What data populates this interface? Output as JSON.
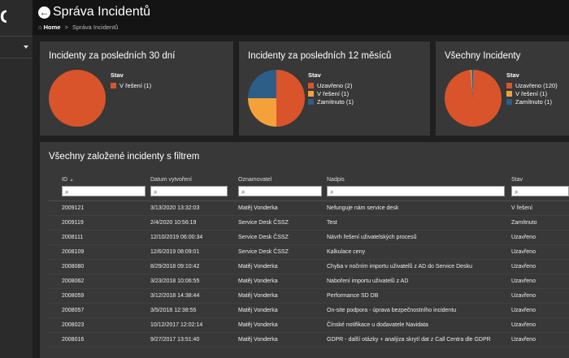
{
  "header": {
    "back_label": "←",
    "title": "Správa Incidentů",
    "breadcrumb": {
      "home": "Home",
      "separator": ">",
      "current": "Správa Incidentů"
    }
  },
  "sidebar": {
    "logo": "G"
  },
  "colors": {
    "uzavreno": "#d9542b",
    "v_reseni": "#f5a13a",
    "zamitnuto": "#2c5e88",
    "card_bg": "#383838",
    "page_bg": "#1f1f1f"
  },
  "cards": [
    {
      "title": "Incidenty za posledních 30 dní",
      "legend_title": "Stav",
      "items": [
        {
          "label": "V řešení (1)",
          "value": 1,
          "color": "#d9542b"
        }
      ]
    },
    {
      "title": "Incidenty za posledních 12 měsíců",
      "legend_title": "Stav",
      "items": [
        {
          "label": "Uzavřeno (2)",
          "value": 2,
          "color": "#d9542b"
        },
        {
          "label": "V řešení (1)",
          "value": 1,
          "color": "#f5a13a"
        },
        {
          "label": "Zamítnuto (1)",
          "value": 1,
          "color": "#2c5e88"
        }
      ]
    },
    {
      "title": "Všechny Incidenty",
      "legend_title": "Stav",
      "items": [
        {
          "label": "Uzavřeno (120)",
          "value": 120,
          "color": "#d9542b"
        },
        {
          "label": "V řešení (1)",
          "value": 1,
          "color": "#f5a13a"
        },
        {
          "label": "Zamítnuto (1)",
          "value": 1,
          "color": "#2c5e88"
        }
      ]
    }
  ],
  "chart_data": [
    {
      "type": "pie",
      "title": "Incidenty za posledních 30 dní",
      "legend_title": "Stav",
      "categories": [
        "V řešení"
      ],
      "values": [
        1
      ]
    },
    {
      "type": "pie",
      "title": "Incidenty za posledních 12 měsíců",
      "legend_title": "Stav",
      "categories": [
        "Uzavřeno",
        "V řešení",
        "Zamítnuto"
      ],
      "values": [
        2,
        1,
        1
      ]
    },
    {
      "type": "pie",
      "title": "Všechny Incidenty",
      "legend_title": "Stav",
      "categories": [
        "Uzavřeno",
        "V řešení",
        "Zamítnuto"
      ],
      "values": [
        120,
        1,
        1
      ]
    }
  ],
  "table": {
    "title": "Všechny založené incidenty s filtrem",
    "columns": [
      "ID",
      "Datum vytvoření",
      "Oznamovatel",
      "Nadpis",
      "Stav"
    ],
    "sort_icon": "sort-indicator-icon",
    "filter_icon": "search-icon",
    "rows": [
      [
        "2009121",
        "3/13/2020 13:32:03",
        "Matěj Vonderka",
        "Nefunguje nám service desk",
        "V řešení"
      ],
      [
        "2009119",
        "2/4/2020 10:56:19",
        "Service Desk ČSSZ",
        "Test",
        "Zamítnuto"
      ],
      [
        "2008111",
        "12/10/2019 06:00:34",
        "Service Desk ČSSZ",
        "Návrh řešení uživatelských procesů",
        "Uzavřeno"
      ],
      [
        "2008109",
        "12/6/2019 08:09:01",
        "Service Desk ČSSZ",
        "Kalkulace ceny",
        "Uzavřeno"
      ],
      [
        "2008080",
        "8/29/2018 09:10:42",
        "Matěj Vonderka",
        "Chyba v nočním importu uživatelů z AD do Service Desku",
        "Uzavřeno"
      ],
      [
        "2008062",
        "3/23/2018 10:06:55",
        "Matěj Vonderka",
        "Naboření importu uživatelů z AD",
        "Uzavřeno"
      ],
      [
        "2008059",
        "3/12/2018 14:38:44",
        "Matěj Vonderka",
        "Performance SD DB",
        "Uzavřeno"
      ],
      [
        "2008057",
        "3/5/2018 12:38:55",
        "Matěj Vonderka",
        "On-site podpora - úprava bezpečnostního incidentu",
        "Uzavřeno"
      ],
      [
        "2008023",
        "10/12/2017 12:02:14",
        "Matěj Vonderka",
        "Čínské notifikace u dodavatele Navidata",
        "Uzavřeno"
      ],
      [
        "2008016",
        "9/27/2017 13:51:40",
        "Matěj Vonderka",
        "GDPR - další otázky + analýza skrytí dat z Call Centra dle GDPR",
        "Uzavřeno"
      ]
    ]
  }
}
